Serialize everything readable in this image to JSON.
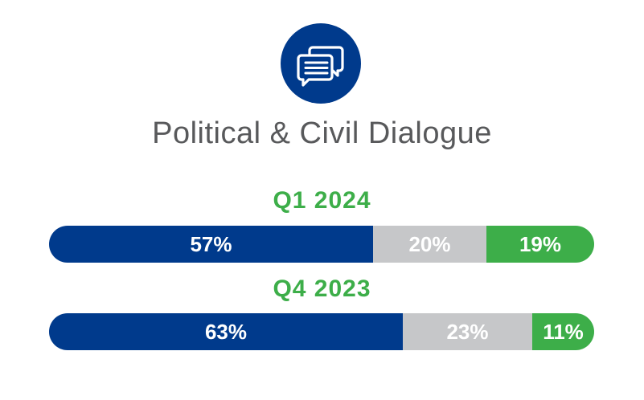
{
  "title": "Political & Civil Dialogue",
  "icon": "chat-bubbles-icon",
  "colors": {
    "navy": "#003A8C",
    "gray": "#C6C7C9",
    "green": "#3DAE49",
    "title_text": "#58595B"
  },
  "chart_data": {
    "type": "bar",
    "orientation": "horizontal-stacked",
    "categories": [
      "Q1 2024",
      "Q4 2023"
    ],
    "series": [
      {
        "values": [
          57,
          63
        ],
        "labels": [
          "57%",
          "63%"
        ],
        "color": "#003A8C"
      },
      {
        "values": [
          20,
          23
        ],
        "labels": [
          "20%",
          "23%"
        ],
        "color": "#C6C7C9"
      },
      {
        "values": [
          19,
          11
        ],
        "labels": [
          "19%",
          "11%"
        ],
        "color": "#3DAE49"
      }
    ]
  }
}
